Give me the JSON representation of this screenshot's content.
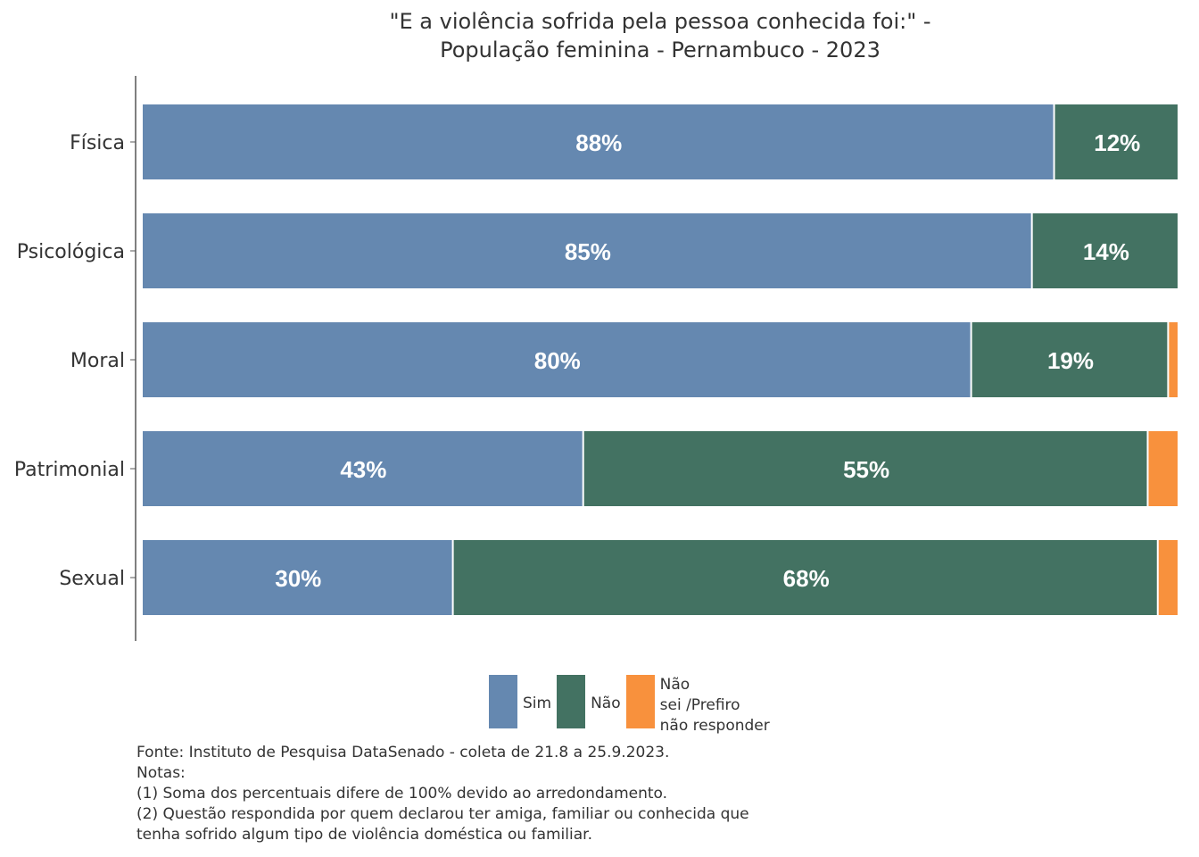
{
  "chart_data": {
    "type": "bar",
    "orientation": "horizontal",
    "stacked": true,
    "title_line1": "\"E a violência sofrida pela pessoa conhecida foi:\" -",
    "title_line2": "População feminina - Pernambuco - 2023",
    "categories": [
      "Física",
      "Psicológica",
      "Moral",
      "Patrimonial",
      "Sexual"
    ],
    "series": [
      {
        "name": "Sim",
        "color": "#6588b0",
        "values": [
          88,
          85,
          80,
          43,
          30
        ],
        "labels": [
          "88%",
          "85%",
          "80%",
          "43%",
          "30%"
        ]
      },
      {
        "name": "Não",
        "color": "#437262",
        "values": [
          12,
          14,
          19,
          55,
          68
        ],
        "labels": [
          "12%",
          "14%",
          "19%",
          "55%",
          "68%"
        ]
      },
      {
        "name": "Não sei /Prefiro não responder",
        "legend_lines": [
          "Não",
          "sei /Prefiro",
          "não responder"
        ],
        "color": "#f8913d",
        "values": [
          0,
          0,
          1,
          3,
          2
        ],
        "values_note": "estimated, unlabeled",
        "labels": [
          "",
          "",
          "",
          "",
          ""
        ]
      }
    ],
    "xlim": [
      0,
      100
    ],
    "grid": false,
    "legend_position": "bottom"
  },
  "notes": [
    "Fonte: Instituto de Pesquisa DataSenado - coleta de 21.8 a 25.9.2023.",
    "Notas:",
    "(1) Soma dos percentuais difere de 100% devido ao arredondamento.",
    "(2) Questão respondida por quem declarou ter amiga, familiar ou conhecida que",
    "tenha sofrido algum tipo de violência doméstica ou familiar."
  ]
}
